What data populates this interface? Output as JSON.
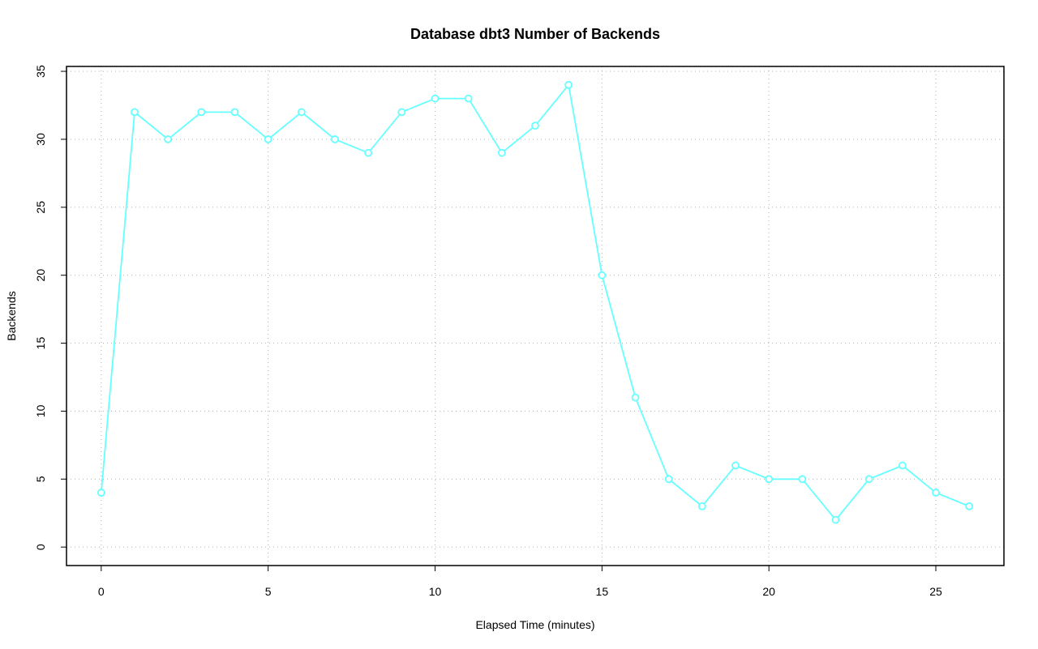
{
  "chart_data": {
    "type": "line",
    "title": "Database dbt3 Number of Backends",
    "xlabel": "Elapsed Time (minutes)",
    "ylabel": "Backends",
    "x": [
      0,
      1,
      2,
      3,
      4,
      5,
      6,
      7,
      8,
      9,
      10,
      11,
      12,
      13,
      14,
      15,
      16,
      17,
      18,
      19,
      20,
      21,
      22,
      23,
      24,
      25,
      26
    ],
    "values": [
      4,
      32,
      30,
      32,
      32,
      30,
      32,
      30,
      29,
      32,
      33,
      33,
      29,
      31,
      34,
      20,
      11,
      5,
      3,
      6,
      5,
      5,
      2,
      5,
      6,
      4,
      3
    ],
    "color": "#66ffff",
    "xlim": [
      -1.04,
      27.04
    ],
    "xticks": [
      0,
      5,
      10,
      15,
      20,
      25
    ],
    "ylim": [
      -1.36,
      35.36
    ],
    "yticks": [
      0,
      5,
      10,
      15,
      20,
      25,
      30,
      35
    ],
    "grid": true
  }
}
